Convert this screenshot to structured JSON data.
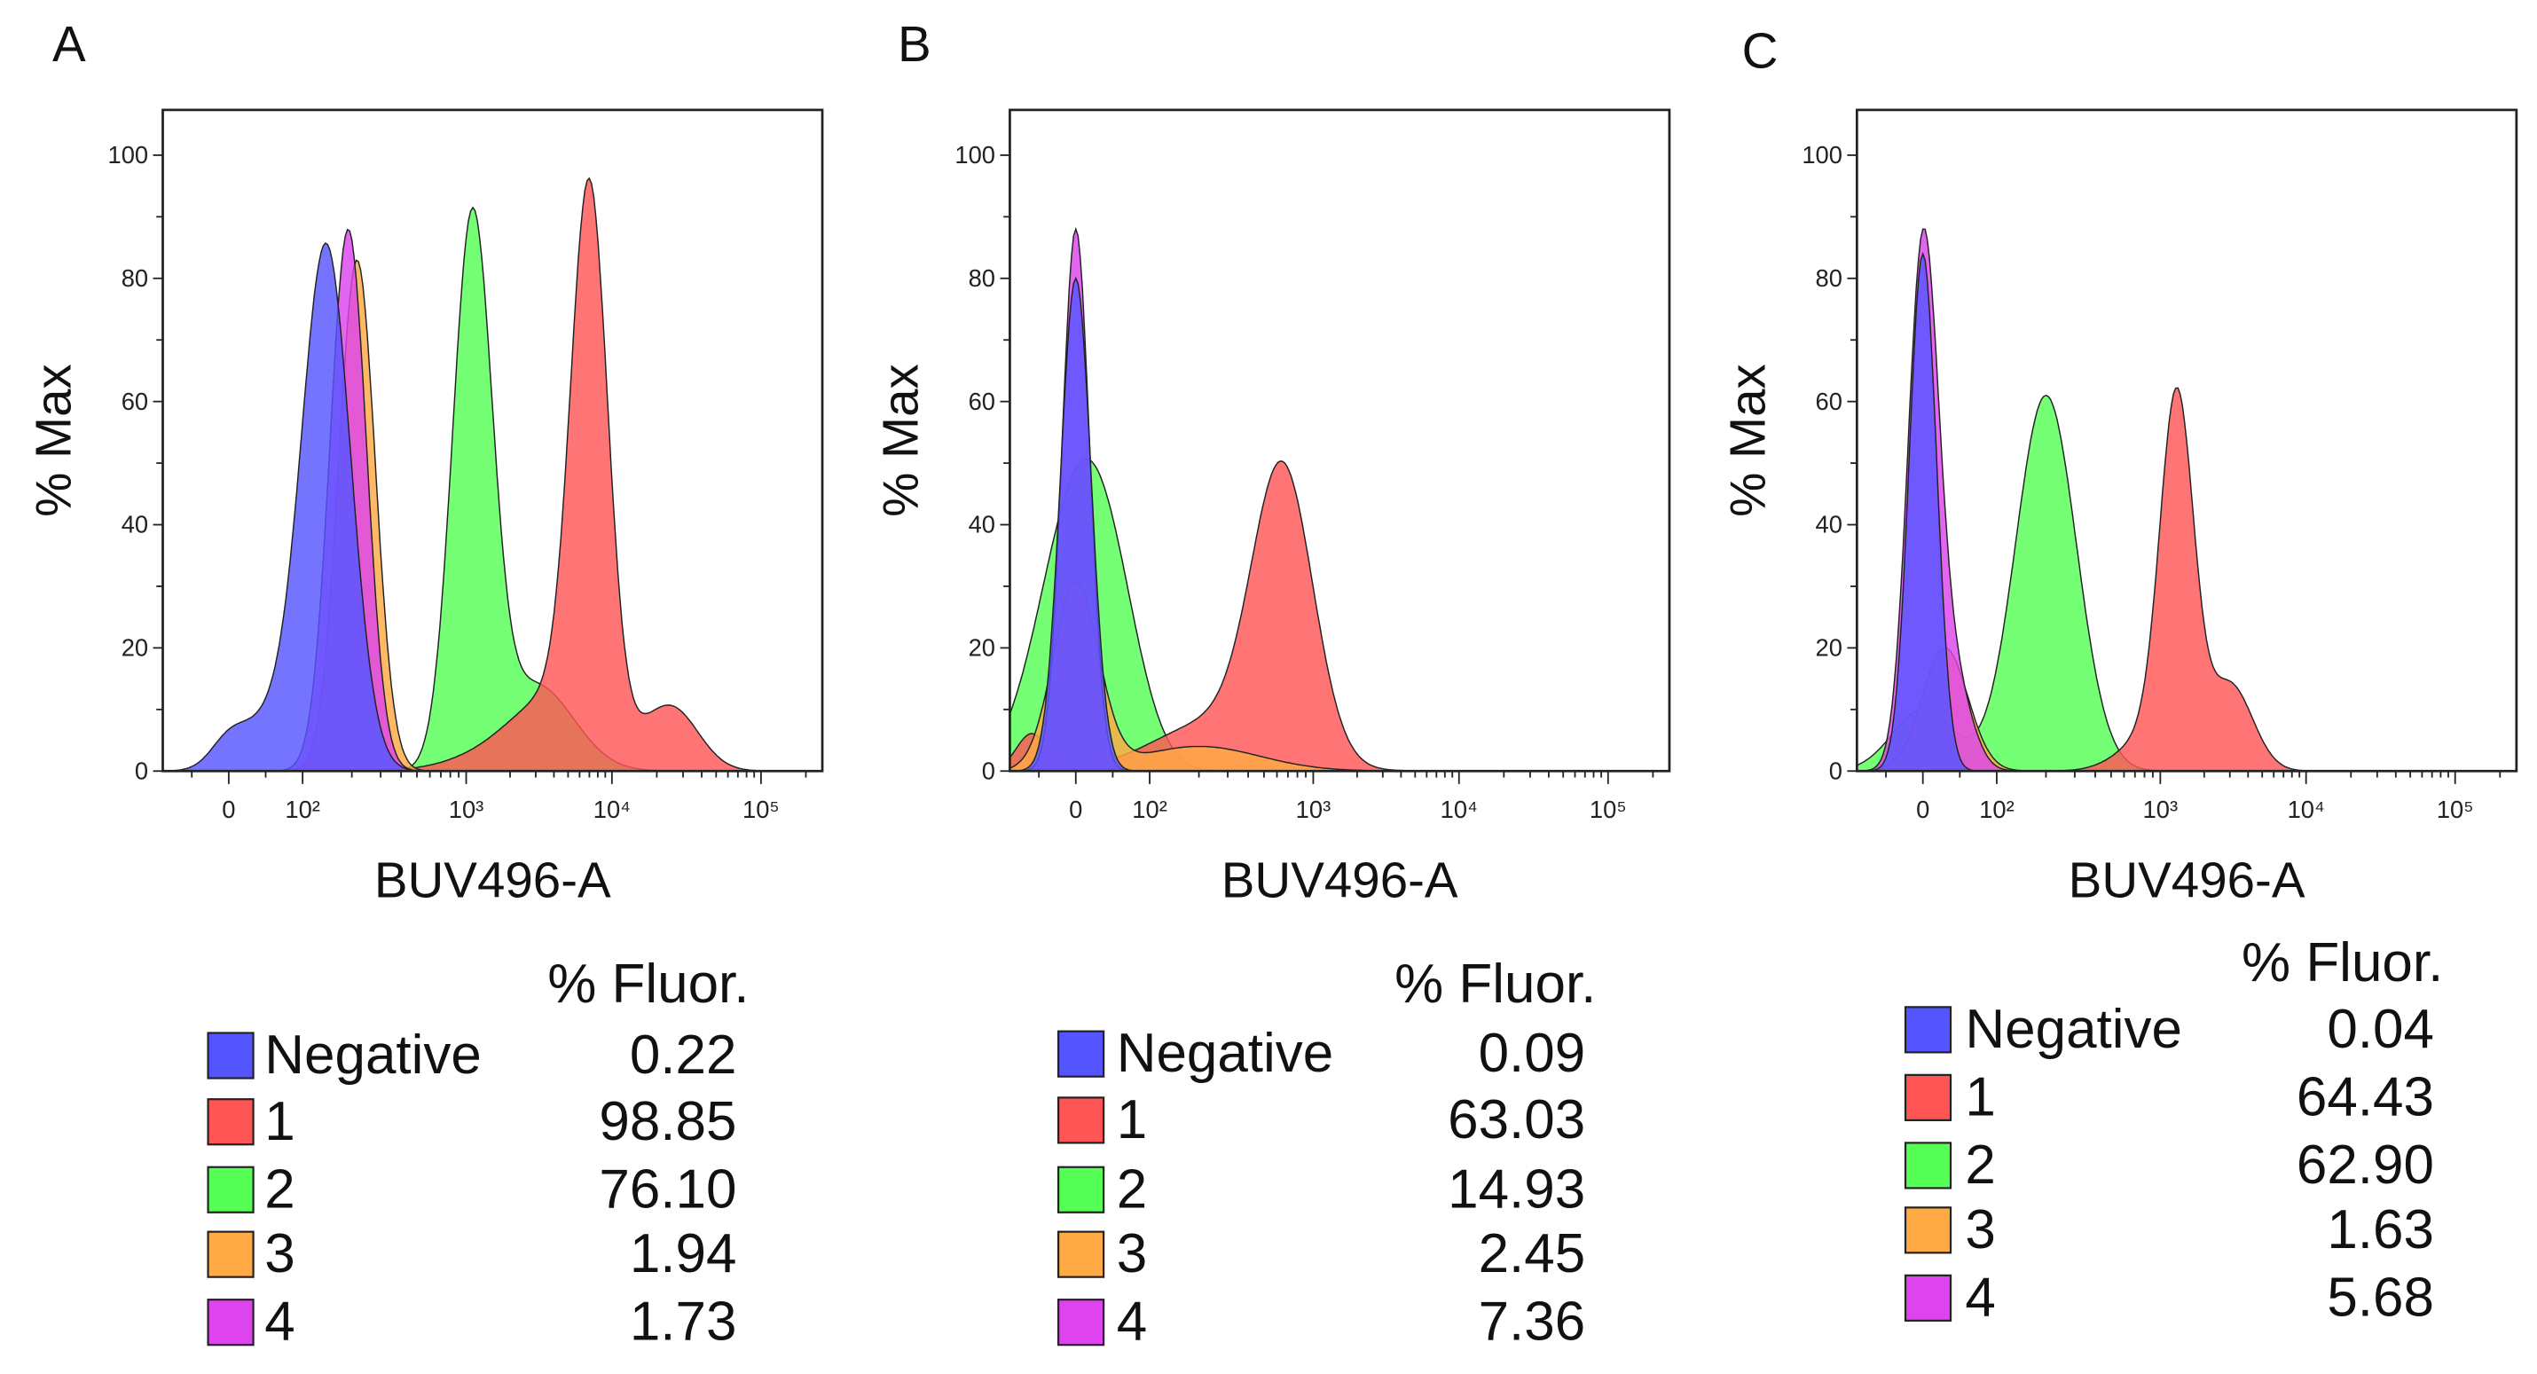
{
  "chart_data": [
    {
      "type": "area",
      "panel": "A",
      "xlabel": "BUV496-A",
      "ylabel": "% Max",
      "ylim": [
        0,
        105
      ],
      "yticks": [
        "0",
        "20",
        "40",
        "60",
        "80",
        "100"
      ],
      "xticks": [
        "0",
        "10²",
        "10³",
        "10⁴",
        "10⁵"
      ],
      "legend_header": "% Fluor.",
      "series": [
        {
          "name": "2",
          "color": "#55ff55",
          "value": "76.10",
          "components": [
            {
              "c": 1100,
              "h": 88,
              "s": 0.13
            },
            {
              "c": 3000,
              "h": 14,
              "s": 0.25
            }
          ]
        },
        {
          "name": "1",
          "color": "#ff5555",
          "value": "98.85",
          "components": [
            {
              "c": 7000,
              "h": 86,
              "s": 0.12
            },
            {
              "c": 25000,
              "h": 10,
              "s": 0.18
            },
            {
              "c": 4500,
              "h": 12,
              "s": 0.3
            },
            {
              "c": 1500,
              "h": 2,
              "s": 0.3
            }
          ]
        },
        {
          "name": "3",
          "color": "#ffaa44",
          "value": "1.94",
          "components": [
            {
              "c": 215,
              "h": 83,
              "s": 0.12
            }
          ]
        },
        {
          "name": "4",
          "color": "#dd44ee",
          "value": "1.73",
          "components": [
            {
              "c": 190,
              "h": 88,
              "s": 0.12
            }
          ]
        },
        {
          "name": "Negative",
          "color": "#5555ff",
          "value": "0.22",
          "components": [
            {
              "c": 140,
              "h": 84,
              "s": 0.16
            },
            {
              "c": 0,
              "h": 4,
              "s": 0.12
            },
            {
              "c": 60,
              "h": 8,
              "s": 0.2
            }
          ]
        }
      ],
      "legend_order": [
        "Negative",
        "1",
        "2",
        "3",
        "4"
      ]
    },
    {
      "type": "area",
      "panel": "B",
      "xlabel": "BUV496-A",
      "ylabel": "% Max",
      "ylim": [
        0,
        105
      ],
      "yticks": [
        "0",
        "20",
        "40",
        "60",
        "80",
        "100"
      ],
      "xticks": [
        "0",
        "10²",
        "10³",
        "10⁴",
        "10⁵"
      ],
      "legend_header": "% Fluor.",
      "series": [
        {
          "name": "2",
          "color": "#55ff55",
          "value": "14.93",
          "components": [
            {
              "c": 0,
              "h": 42,
              "s": 0.25
            },
            {
              "c": 50,
              "h": 15,
              "s": 0.2
            }
          ]
        },
        {
          "name": "1",
          "color": "#ff5555",
          "value": "63.03",
          "components": [
            {
              "c": 650,
              "h": 46,
              "s": 0.2
            },
            {
              "c": 250,
              "h": 8,
              "s": 0.4
            },
            {
              "c": -60,
              "h": 6,
              "s": 0.1
            }
          ]
        },
        {
          "name": "3",
          "color": "#ffaa44",
          "value": "2.45",
          "components": [
            {
              "c": 0,
              "h": 30,
              "s": 0.15
            },
            {
              "c": 200,
              "h": 4,
              "s": 0.4
            }
          ]
        },
        {
          "name": "4",
          "color": "#dd44ee",
          "value": "7.36",
          "components": [
            {
              "c": 0,
              "h": 88,
              "s": 0.09
            }
          ]
        },
        {
          "name": "Negative",
          "color": "#5555ff",
          "value": "0.09",
          "components": [
            {
              "c": 0,
              "h": 80,
              "s": 0.1
            }
          ]
        }
      ],
      "legend_order": [
        "Negative",
        "1",
        "2",
        "3",
        "4"
      ]
    },
    {
      "type": "area",
      "panel": "C",
      "xlabel": "BUV496-A",
      "ylabel": "% Max",
      "ylim": [
        0,
        105
      ],
      "yticks": [
        "0",
        "20",
        "40",
        "60",
        "80",
        "100"
      ],
      "xticks": [
        "0",
        "10²",
        "10³",
        "10⁴",
        "10⁵"
      ],
      "legend_header": "% Fluor.",
      "series": [
        {
          "name": "2",
          "color": "#55ff55",
          "value": "62.90",
          "components": [
            {
              "c": 200,
              "h": 61,
              "s": 0.2
            },
            {
              "c": 0,
              "h": 10,
              "s": 0.2
            }
          ]
        },
        {
          "name": "1",
          "color": "#ff5555",
          "value": "64.43",
          "components": [
            {
              "c": 1300,
              "h": 57,
              "s": 0.11
            },
            {
              "c": 3000,
              "h": 14,
              "s": 0.15
            },
            {
              "c": 900,
              "h": 6,
              "s": 0.2
            }
          ]
        },
        {
          "name": "3",
          "color": "#ffaa44",
          "value": "1.63",
          "components": [
            {
              "c": 30,
              "h": 20,
              "s": 0.15
            }
          ]
        },
        {
          "name": "4",
          "color": "#dd44ee",
          "value": "5.68",
          "components": [
            {
              "c": 0,
              "h": 84,
              "s": 0.1
            },
            {
              "c": 40,
              "h": 15,
              "s": 0.12
            }
          ]
        },
        {
          "name": "Negative",
          "color": "#5555ff",
          "value": "0.04",
          "components": [
            {
              "c": 0,
              "h": 84,
              "s": 0.09
            }
          ]
        }
      ],
      "legend_order": [
        "Negative",
        "1",
        "2",
        "3",
        "4"
      ]
    }
  ]
}
